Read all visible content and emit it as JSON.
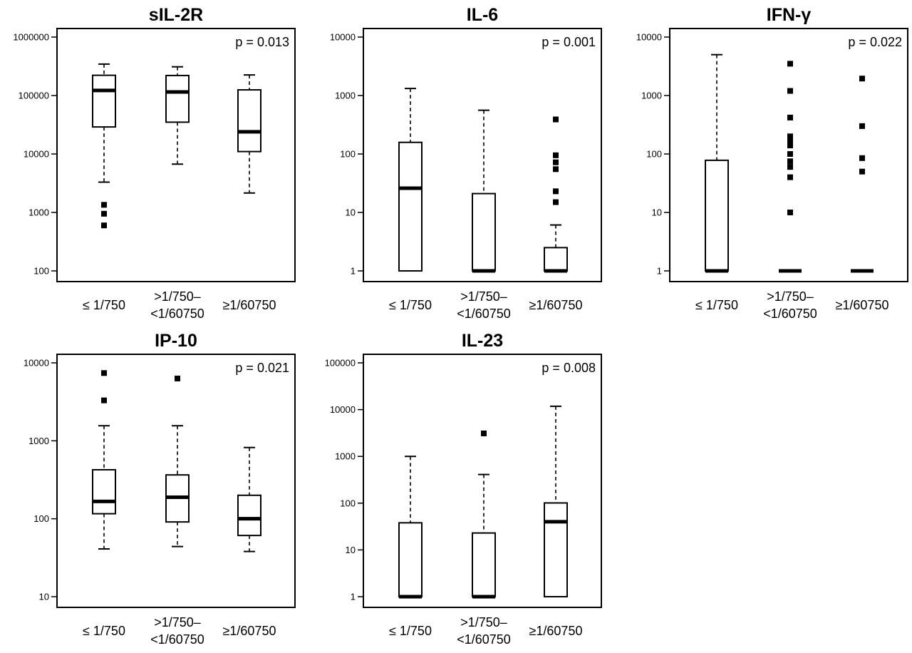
{
  "chart_data": [
    {
      "type": "box",
      "title": "sIL-2R",
      "pvalue": "p =  0.013",
      "yscale": "log",
      "ylim": [
        100,
        1000000
      ],
      "yticks": [
        "100",
        "1000",
        "10000",
        "100000",
        "1000000"
      ],
      "categories": [
        "≤ 1/750",
        ">1/750–\n<1/60750",
        "≥1/60750"
      ],
      "boxes": [
        {
          "whisker_low": 3300,
          "q1": 29000,
          "median": 122000,
          "q3": 222000,
          "whisker_high": 345000,
          "outliers": [
            1350,
            950,
            600
          ]
        },
        {
          "whisker_low": 6700,
          "q1": 35000,
          "median": 115000,
          "q3": 220000,
          "whisker_high": 310000,
          "outliers": []
        },
        {
          "whisker_low": 2150,
          "q1": 11000,
          "median": 24000,
          "q3": 125000,
          "whisker_high": 225000,
          "outliers": []
        }
      ]
    },
    {
      "type": "box",
      "title": "IL-6",
      "pvalue": "p =  0.001",
      "yscale": "log",
      "ylim": [
        1,
        10000
      ],
      "yticks": [
        "1",
        "10",
        "100",
        "1000",
        "10000"
      ],
      "categories": [
        "≤ 1/750",
        ">1/750–\n<1/60750",
        "≥1/60750"
      ],
      "boxes": [
        {
          "whisker_low": 1,
          "q1": 1,
          "median": 26,
          "q3": 158,
          "whisker_high": 1320,
          "outliers": []
        },
        {
          "whisker_low": 1,
          "q1": 1,
          "median": 1,
          "q3": 21,
          "whisker_high": 560,
          "outliers": []
        },
        {
          "whisker_low": 1,
          "q1": 1,
          "median": 1,
          "q3": 2.5,
          "whisker_high": 6.1,
          "outliers": [
            390,
            95,
            72,
            55,
            23,
            15
          ]
        }
      ]
    },
    {
      "type": "box",
      "title": "IFN-γ",
      "pvalue": "p =  0.022",
      "yscale": "log",
      "ylim": [
        1,
        10000
      ],
      "yticks": [
        "1",
        "10",
        "100",
        "1000",
        "10000"
      ],
      "categories": [
        "≤ 1/750",
        ">1/750–\n<1/60750",
        "≥1/60750"
      ],
      "boxes": [
        {
          "whisker_low": 1,
          "q1": 1,
          "median": 1,
          "q3": 78,
          "whisker_high": 5000,
          "outliers": []
        },
        {
          "whisker_low": 1,
          "q1": 1,
          "median": 1,
          "q3": 1,
          "whisker_high": 1,
          "outliers": [
            3500,
            1200,
            420,
            200,
            170,
            140,
            100,
            75,
            60,
            40,
            10
          ]
        },
        {
          "whisker_low": 1,
          "q1": 1,
          "median": 1,
          "q3": 1,
          "whisker_high": 1,
          "outliers": [
            1950,
            300,
            85,
            50
          ]
        }
      ]
    },
    {
      "type": "box",
      "title": "IP-10",
      "pvalue": "p =  0.021",
      "yscale": "log",
      "ylim": [
        10,
        10000
      ],
      "yticks": [
        "10",
        "100",
        "1000",
        "10000"
      ],
      "categories": [
        "≤ 1/750",
        ">1/750–\n<1/60750",
        "≥1/60750"
      ],
      "boxes": [
        {
          "whisker_low": 41,
          "q1": 116,
          "median": 167,
          "q3": 425,
          "whisker_high": 1560,
          "outliers": [
            7400,
            3300
          ]
        },
        {
          "whisker_low": 44,
          "q1": 91,
          "median": 189,
          "q3": 365,
          "whisker_high": 1560,
          "outliers": [
            6300
          ]
        },
        {
          "whisker_low": 38,
          "q1": 61,
          "median": 100,
          "q3": 200,
          "whisker_high": 820,
          "outliers": []
        }
      ]
    },
    {
      "type": "box",
      "title": "IL-23",
      "pvalue": "p =  0.008",
      "yscale": "log",
      "ylim": [
        1,
        100000
      ],
      "yticks": [
        "1",
        "10",
        "100",
        "1000",
        "10000",
        "100000"
      ],
      "categories": [
        "≤ 1/750",
        ">1/750–\n<1/60750",
        "≥1/60750"
      ],
      "boxes": [
        {
          "whisker_low": 1,
          "q1": 1,
          "median": 1,
          "q3": 38,
          "whisker_high": 1000,
          "outliers": []
        },
        {
          "whisker_low": 1,
          "q1": 1,
          "median": 1,
          "q3": 23,
          "whisker_high": 410,
          "outliers": [
            3100
          ]
        },
        {
          "whisker_low": 1,
          "q1": 1,
          "median": 40,
          "q3": 101,
          "whisker_high": 11800,
          "outliers": []
        }
      ]
    }
  ]
}
